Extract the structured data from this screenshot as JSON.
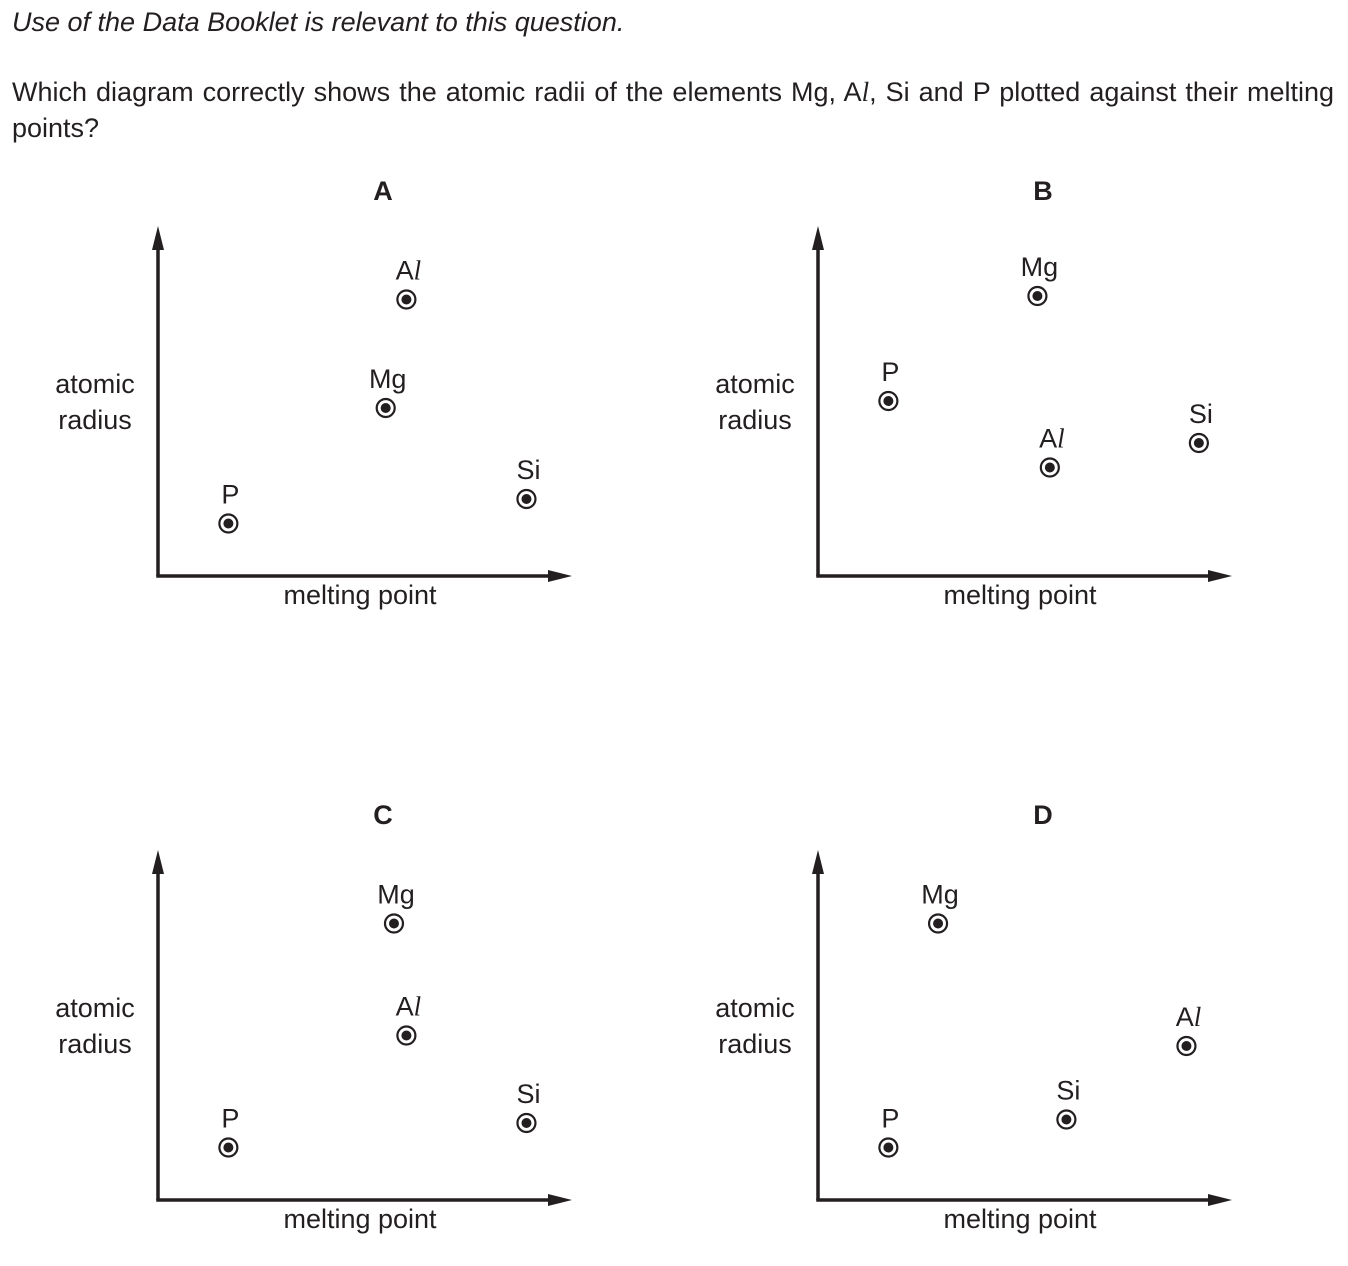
{
  "header": {
    "intro": "Use of the Data Booklet is relevant to this question.",
    "question_start": "Which diagram correctly shows the atomic radii of the elements Mg, A",
    "question_l": "l",
    "question_end": ", Si and P plotted against their melting points?"
  },
  "chart_data": [
    {
      "type": "scatter",
      "title": "A",
      "xlabel": "melting point",
      "ylabel": "atomic radius",
      "xlim": [
        0,
        1
      ],
      "ylim": [
        0,
        1
      ],
      "points": [
        {
          "label": "A",
          "label_l": "l",
          "x": 0.6,
          "y": 0.79
        },
        {
          "label": "Mg",
          "x": 0.55,
          "y": 0.48
        },
        {
          "label": "Si",
          "x": 0.89,
          "y": 0.22
        },
        {
          "label": "P",
          "x": 0.17,
          "y": 0.15
        }
      ]
    },
    {
      "type": "scatter",
      "title": "B",
      "xlabel": "melting point",
      "ylabel": "atomic radius",
      "xlim": [
        0,
        1
      ],
      "ylim": [
        0,
        1
      ],
      "points": [
        {
          "label": "Mg",
          "x": 0.53,
          "y": 0.8
        },
        {
          "label": "P",
          "x": 0.17,
          "y": 0.5
        },
        {
          "label": "Si",
          "x": 0.92,
          "y": 0.38
        },
        {
          "label": "A",
          "label_l": "l",
          "x": 0.56,
          "y": 0.31
        }
      ]
    },
    {
      "type": "scatter",
      "title": "C",
      "xlabel": "melting point",
      "ylabel": "atomic radius",
      "xlim": [
        0,
        1
      ],
      "ylim": [
        0,
        1
      ],
      "points": [
        {
          "label": "Mg",
          "x": 0.57,
          "y": 0.79
        },
        {
          "label": "A",
          "label_l": "l",
          "x": 0.6,
          "y": 0.47
        },
        {
          "label": "Si",
          "x": 0.89,
          "y": 0.22
        },
        {
          "label": "P",
          "x": 0.17,
          "y": 0.15
        }
      ]
    },
    {
      "type": "scatter",
      "title": "D",
      "xlabel": "melting point",
      "ylabel": "atomic radius",
      "xlim": [
        0,
        1
      ],
      "ylim": [
        0,
        1
      ],
      "points": [
        {
          "label": "Mg",
          "x": 0.29,
          "y": 0.79
        },
        {
          "label": "A",
          "label_l": "l",
          "x": 0.89,
          "y": 0.44
        },
        {
          "label": "Si",
          "x": 0.6,
          "y": 0.23
        },
        {
          "label": "P",
          "x": 0.17,
          "y": 0.15
        }
      ]
    }
  ]
}
